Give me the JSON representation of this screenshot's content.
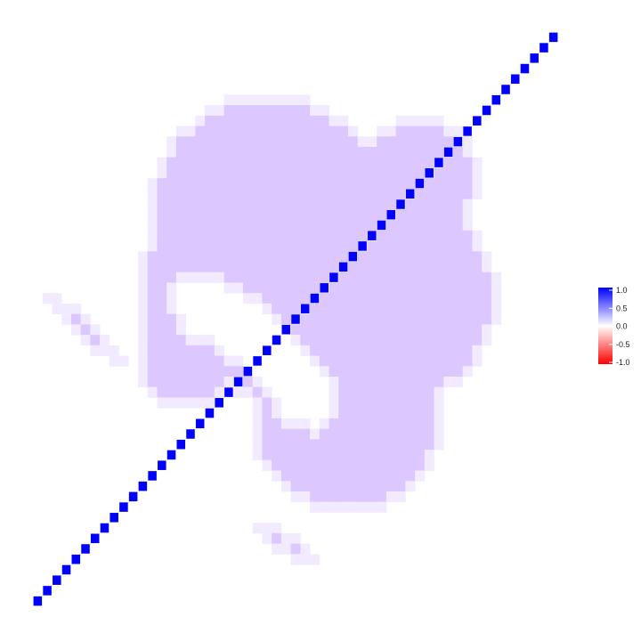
{
  "chart_data": {
    "type": "heatmap",
    "description_role": "correlation matrix heatmap",
    "title": "",
    "xlabel": "",
    "ylabel": "",
    "grid": false,
    "axes_shown": false,
    "n_variables": 55,
    "diagonal_value": 1.0,
    "background_blob_value": 0.2,
    "ellipse_center_value": 0.0,
    "legend": {
      "placement": "right",
      "ticks": [
        "1.0",
        "0.5",
        "0.0",
        "-0.5",
        "-1.0"
      ],
      "range": [
        -1.0,
        1.0
      ]
    },
    "colors": {
      "high": "#0000ff",
      "mid": "#ffffff",
      "low": "#ff0000",
      "blob": "#dcc8ff",
      "blob_edge": "#f2ebff"
    }
  }
}
